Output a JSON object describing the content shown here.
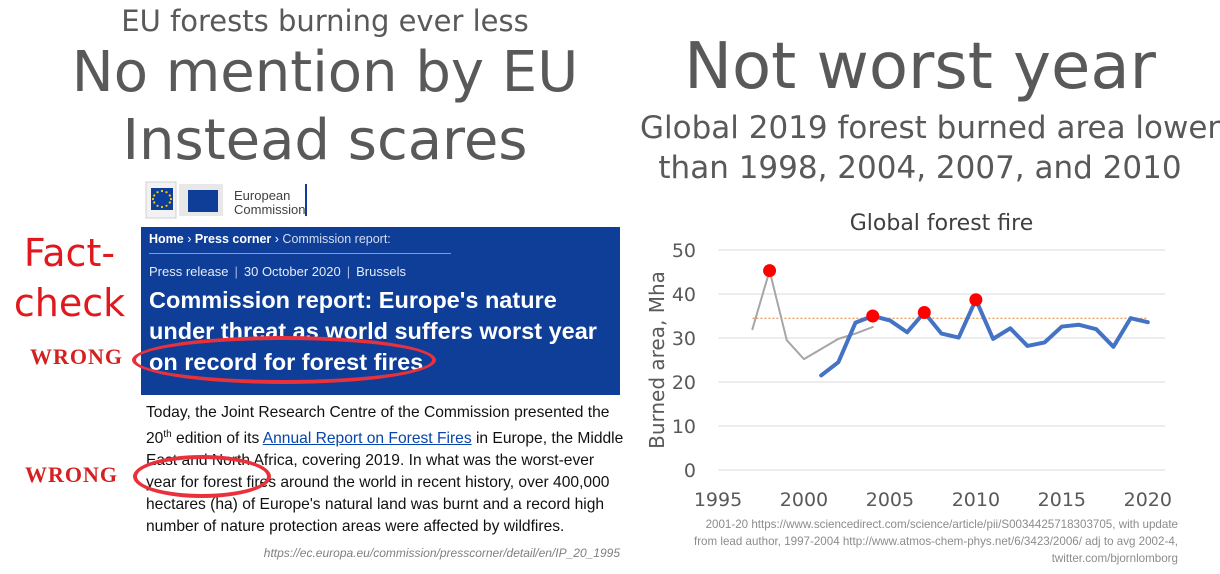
{
  "left": {
    "subtitle": "EU forests burning ever less",
    "heading_line1": "No mention by EU",
    "heading_line2": "Instead scares",
    "fact_check": "Fact-check",
    "wrong_label": "WRONG",
    "logo": {
      "line1": "European",
      "line2": "Commission"
    },
    "breadcrumb": [
      "Home",
      "Press corner",
      "Commission report:"
    ],
    "press_type": "Press release",
    "press_date": "30 October 2020",
    "press_city": "Brussels",
    "press_title": "Commission report: Europe's nature under threat as world suffers worst year on record for forest fires",
    "body": {
      "p1": "Today, the Joint Research Centre of the Commission presented the 20",
      "sup": "th",
      "p2": " edition of its ",
      "link": "Annual Report on Forest Fires",
      "p3": " in Europe, the Middle East and North Africa, covering 2019. In what was the worst-ever year for forest fires around the world in recent history, over 400,000 hectares (ha) of Europe's natural land was burnt and a record high number of nature protection areas were affected by wildfires."
    },
    "source_url": "https://ec.europa.eu/commission/presscorner/detail/en/IP_20_1995"
  },
  "right": {
    "heading": "Not worst year",
    "sub_line1": "Global 2019 forest burned area lower",
    "sub_line2": "than 1998, 2004, 2007, and 2010",
    "source_line1": "2001-20 https://www.sciencedirect.com/science/article/pii/S0034425718303705, with update",
    "source_line2": "from lead author, 1997-2004 http://www.atmos-chem-phys.net/6/3423/2006/ adj to avg 2002-4,",
    "source_line3": "twitter.com/bjornlomborg"
  },
  "colors": {
    "heading_grey": "#595959",
    "press_blue": "#0e3e97",
    "alert_red": "#e0191e",
    "series_blue": "#4472c4",
    "series_grey": "#a6a6a6",
    "marker_red": "#ff0000",
    "reference_line": "#ed7d31"
  },
  "chart_data": {
    "type": "line",
    "title": "Global forest fire",
    "xlabel": "",
    "ylabel": "Burned area, Mha",
    "xlim": [
      1995,
      2021
    ],
    "ylim": [
      0,
      50
    ],
    "x_ticks": [
      1995,
      2000,
      2005,
      2010,
      2015,
      2020
    ],
    "y_ticks": [
      0,
      10,
      20,
      30,
      40,
      50
    ],
    "grid": true,
    "legend": "none",
    "series": [
      {
        "color": "#a6a6a6",
        "x": [
          1997,
          1998,
          1999,
          2000,
          2001,
          2002,
          2003,
          2004
        ],
        "y": [
          32.0,
          45.3,
          29.5,
          25.2,
          27.5,
          29.8,
          31.0,
          32.5
        ]
      },
      {
        "color": "#4472c4",
        "x": [
          2001,
          2002,
          2003,
          2004,
          2005,
          2006,
          2007,
          2008,
          2009,
          2010,
          2011,
          2012,
          2013,
          2014,
          2015,
          2016,
          2017,
          2018,
          2019,
          2020
        ],
        "y": [
          21.5,
          24.5,
          33.5,
          35.0,
          34.0,
          31.3,
          35.8,
          31.0,
          30.1,
          38.7,
          29.8,
          32.2,
          28.2,
          29.0,
          32.6,
          33.0,
          32.0,
          28.0,
          34.5,
          33.6
        ]
      }
    ],
    "highlighted_points": [
      {
        "x": 1998,
        "y": 45.3
      },
      {
        "x": 2004,
        "y": 35.0
      },
      {
        "x": 2007,
        "y": 35.8
      },
      {
        "x": 2010,
        "y": 38.7
      }
    ],
    "reference_line": {
      "y": 34.5,
      "x_start": 1997,
      "x_end": 2020,
      "style": "dotted"
    }
  }
}
